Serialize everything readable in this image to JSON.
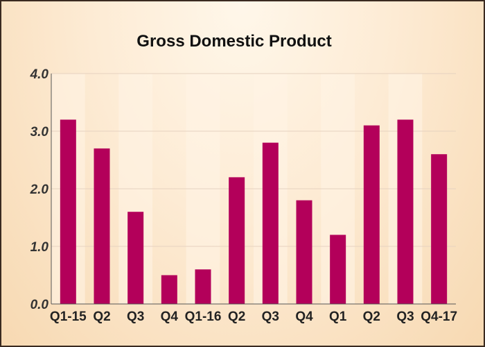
{
  "chart_data": {
    "type": "bar",
    "title": "Gross Domestic Product",
    "xlabel": "",
    "ylabel": "",
    "categories": [
      "Q1-15",
      "Q2",
      "Q3",
      "Q4",
      "Q1-16",
      "Q2",
      "Q3",
      "Q4",
      "Q1",
      "Q2",
      "Q3",
      "Q4-17"
    ],
    "values": [
      3.2,
      2.7,
      1.6,
      0.5,
      0.6,
      2.2,
      2.8,
      1.8,
      1.2,
      3.1,
      3.2,
      2.6
    ],
    "ylim": [
      0,
      4
    ],
    "yticks": [
      "0.0",
      "1.0",
      "2.0",
      "3.0",
      "4.0"
    ],
    "grid": true,
    "legend": "none",
    "colors": {
      "bar": "#b3005a",
      "grid": "#e6d2c0",
      "band_alt": "#fff3e4",
      "axis": "#555555"
    }
  }
}
